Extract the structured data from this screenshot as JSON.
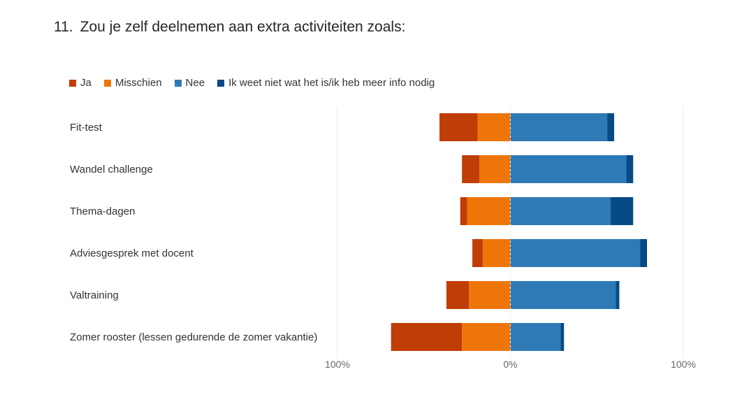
{
  "question": {
    "number": "11.",
    "text": "Zou je zelf deelnemen aan extra activiteiten zoals:"
  },
  "chart_data": {
    "type": "bar",
    "orientation": "horizontal",
    "stacking": "diverging",
    "x_range": [
      -100,
      100
    ],
    "x_ticks": [
      {
        "value": -100,
        "label": "100%"
      },
      {
        "value": 0,
        "label": "0%"
      },
      {
        "value": 100,
        "label": "100%"
      }
    ],
    "legend_position": "top-left",
    "categories": [
      "Fit-test",
      "Wandel challenge",
      "Thema-dagen",
      "Adviesgesprek met docent",
      "Valtraining",
      "Zomer rooster (lessen gedurende de zomer vakantie)"
    ],
    "series": [
      {
        "name": "Ja",
        "side": "left",
        "color": "#BF3D06",
        "values": [
          22,
          10,
          4,
          6,
          13,
          41
        ]
      },
      {
        "name": "Misschien",
        "side": "left",
        "color": "#EE7609",
        "values": [
          19,
          18,
          25,
          16,
          24,
          28
        ]
      },
      {
        "name": "Nee",
        "side": "right",
        "color": "#2E7AB6",
        "values": [
          56,
          67,
          58,
          75,
          61,
          29
        ]
      },
      {
        "name": "Ik weet niet wat het is/ik heb meer info nodig",
        "side": "right",
        "color": "#064A86",
        "values": [
          4,
          4,
          13,
          4,
          2,
          2
        ]
      }
    ]
  }
}
